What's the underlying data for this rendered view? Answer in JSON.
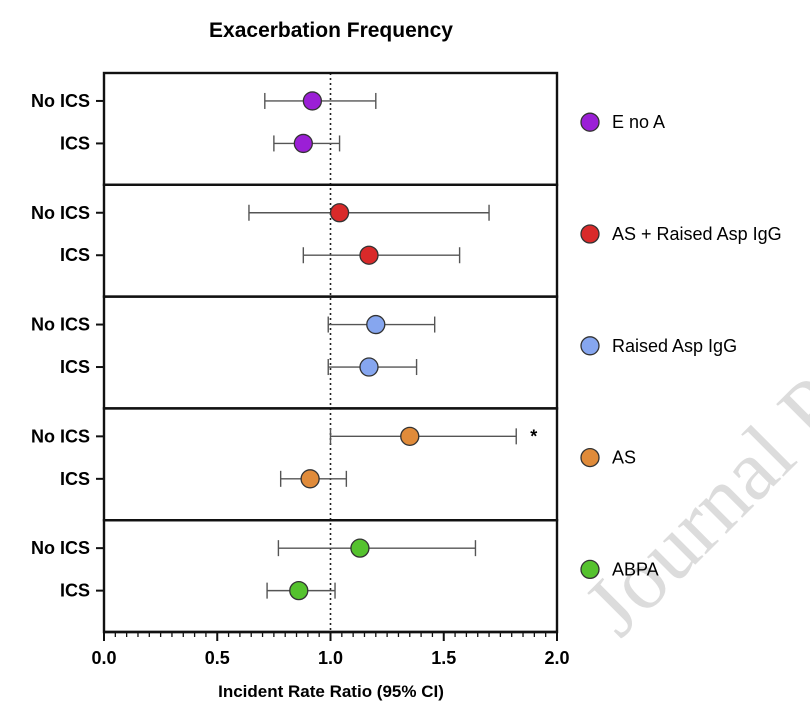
{
  "chart_data": {
    "type": "forest",
    "title": "Exacerbation Frequency",
    "xlabel": "Incident Rate Ratio (95% CI)",
    "xlim": [
      0.0,
      2.0
    ],
    "xticks": [
      "0.0",
      "0.5",
      "1.0",
      "1.5",
      "2.0"
    ],
    "reference_line": 1.0,
    "watermark": "Journal P",
    "groups": [
      {
        "name": "E no A",
        "color": "#9b1fd6",
        "rows": [
          {
            "label": "No ICS",
            "value": 0.92,
            "ci_low": 0.71,
            "ci_high": 1.2,
            "annotation": ""
          },
          {
            "label": "ICS",
            "value": 0.88,
            "ci_low": 0.75,
            "ci_high": 1.04,
            "annotation": ""
          }
        ]
      },
      {
        "name": "AS + Raised Asp IgG",
        "color": "#d92a2a",
        "rows": [
          {
            "label": "No ICS",
            "value": 1.04,
            "ci_low": 0.64,
            "ci_high": 1.7,
            "annotation": ""
          },
          {
            "label": "ICS",
            "value": 1.17,
            "ci_low": 0.88,
            "ci_high": 1.57,
            "annotation": ""
          }
        ]
      },
      {
        "name": "Raised Asp IgG",
        "color": "#86a6ef",
        "rows": [
          {
            "label": "No ICS",
            "value": 1.2,
            "ci_low": 0.99,
            "ci_high": 1.46,
            "annotation": ""
          },
          {
            "label": "ICS",
            "value": 1.17,
            "ci_low": 0.99,
            "ci_high": 1.38,
            "annotation": ""
          }
        ]
      },
      {
        "name": "AS",
        "color": "#e08b3a",
        "rows": [
          {
            "label": "No ICS",
            "value": 1.35,
            "ci_low": 1.0,
            "ci_high": 1.82,
            "annotation": "*"
          },
          {
            "label": "ICS",
            "value": 0.91,
            "ci_low": 0.78,
            "ci_high": 1.07,
            "annotation": ""
          }
        ]
      },
      {
        "name": "ABPA",
        "color": "#55c22e",
        "rows": [
          {
            "label": "No ICS",
            "value": 1.13,
            "ci_low": 0.77,
            "ci_high": 1.64,
            "annotation": ""
          },
          {
            "label": "ICS",
            "value": 0.86,
            "ci_low": 0.72,
            "ci_high": 1.02,
            "annotation": ""
          }
        ]
      }
    ]
  }
}
